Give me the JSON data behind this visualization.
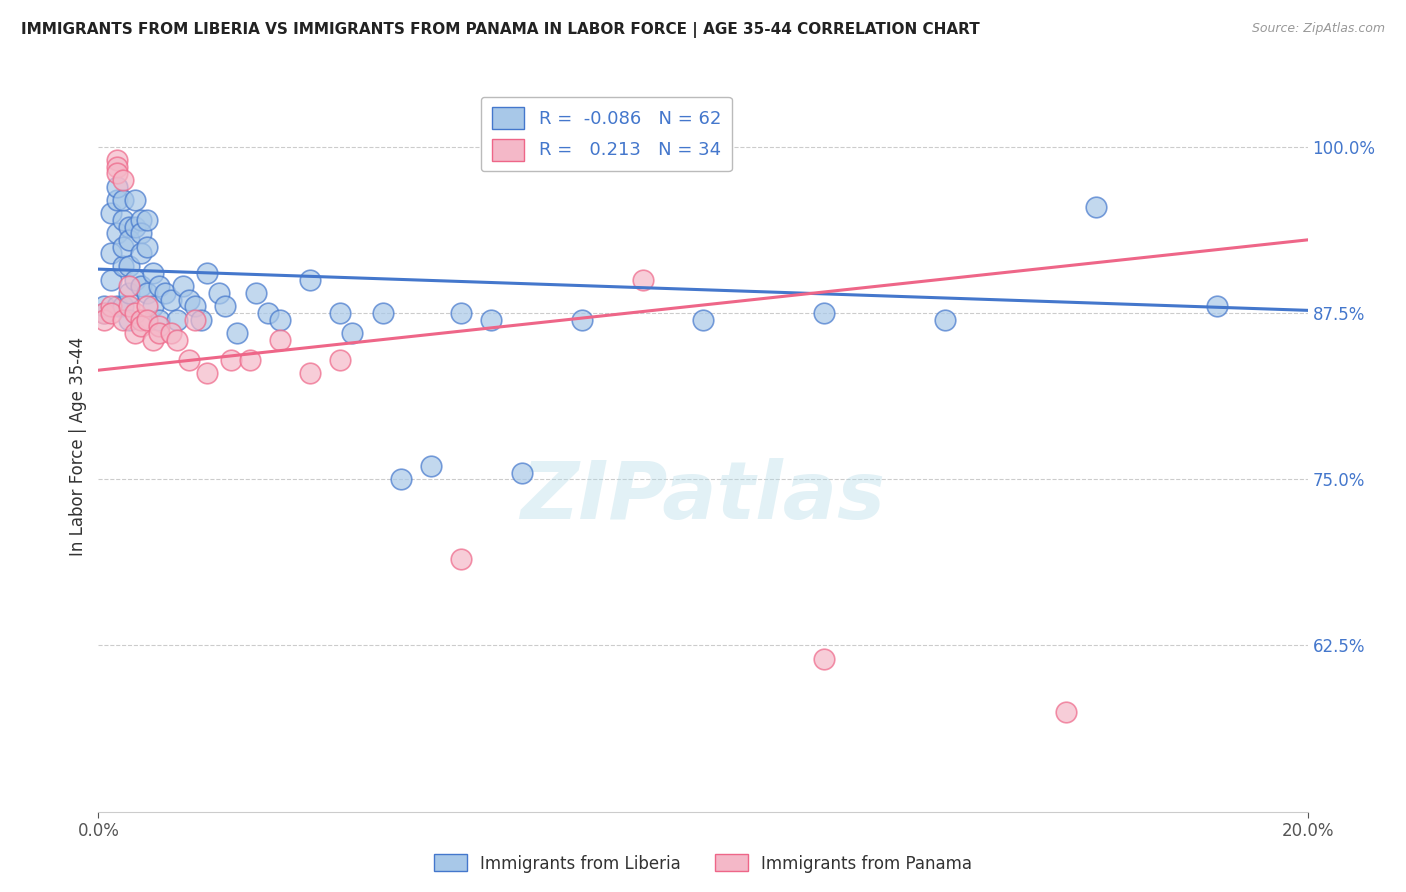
{
  "title": "IMMIGRANTS FROM LIBERIA VS IMMIGRANTS FROM PANAMA IN LABOR FORCE | AGE 35-44 CORRELATION CHART",
  "source": "Source: ZipAtlas.com",
  "ylabel": "In Labor Force | Age 35-44",
  "right_yticks": [
    0.625,
    0.75,
    0.875,
    1.0
  ],
  "right_yticklabels": [
    "62.5%",
    "75.0%",
    "87.5%",
    "100.0%"
  ],
  "xmin": 0.0,
  "xmax": 0.2,
  "ymin": 0.5,
  "ymax": 1.05,
  "blue_R": -0.086,
  "blue_N": 62,
  "pink_R": 0.213,
  "pink_N": 34,
  "blue_color": "#A8C8E8",
  "pink_color": "#F4B8C8",
  "blue_line_color": "#4477CC",
  "pink_line_color": "#EE6688",
  "legend_label_blue": "Immigrants from Liberia",
  "legend_label_pink": "Immigrants from Panama",
  "blue_x": [
    0.001,
    0.001,
    0.002,
    0.002,
    0.002,
    0.003,
    0.003,
    0.003,
    0.003,
    0.004,
    0.004,
    0.004,
    0.004,
    0.004,
    0.005,
    0.005,
    0.005,
    0.005,
    0.005,
    0.006,
    0.006,
    0.006,
    0.007,
    0.007,
    0.007,
    0.007,
    0.008,
    0.008,
    0.008,
    0.009,
    0.009,
    0.01,
    0.01,
    0.011,
    0.012,
    0.013,
    0.014,
    0.015,
    0.016,
    0.017,
    0.018,
    0.02,
    0.021,
    0.023,
    0.026,
    0.028,
    0.03,
    0.035,
    0.04,
    0.042,
    0.047,
    0.05,
    0.055,
    0.06,
    0.065,
    0.07,
    0.08,
    0.1,
    0.12,
    0.14,
    0.165,
    0.185
  ],
  "blue_y": [
    0.875,
    0.88,
    0.9,
    0.92,
    0.95,
    0.935,
    0.96,
    0.97,
    0.88,
    0.91,
    0.945,
    0.96,
    0.925,
    0.88,
    0.94,
    0.93,
    0.91,
    0.89,
    0.87,
    0.96,
    0.94,
    0.9,
    0.945,
    0.935,
    0.92,
    0.895,
    0.945,
    0.925,
    0.89,
    0.905,
    0.88,
    0.895,
    0.87,
    0.89,
    0.885,
    0.87,
    0.895,
    0.885,
    0.88,
    0.87,
    0.905,
    0.89,
    0.88,
    0.86,
    0.89,
    0.875,
    0.87,
    0.9,
    0.875,
    0.86,
    0.875,
    0.75,
    0.76,
    0.875,
    0.87,
    0.755,
    0.87,
    0.87,
    0.875,
    0.87,
    0.955,
    0.88
  ],
  "pink_x": [
    0.001,
    0.001,
    0.002,
    0.002,
    0.003,
    0.003,
    0.003,
    0.004,
    0.004,
    0.005,
    0.005,
    0.006,
    0.006,
    0.007,
    0.007,
    0.008,
    0.008,
    0.009,
    0.01,
    0.01,
    0.012,
    0.013,
    0.015,
    0.016,
    0.018,
    0.022,
    0.025,
    0.03,
    0.035,
    0.04,
    0.06,
    0.09,
    0.12,
    0.16
  ],
  "pink_y": [
    0.875,
    0.87,
    0.88,
    0.875,
    0.99,
    0.985,
    0.98,
    0.975,
    0.87,
    0.895,
    0.88,
    0.875,
    0.86,
    0.87,
    0.865,
    0.88,
    0.87,
    0.855,
    0.865,
    0.86,
    0.86,
    0.855,
    0.84,
    0.87,
    0.83,
    0.84,
    0.84,
    0.855,
    0.83,
    0.84,
    0.69,
    0.9,
    0.615,
    0.575
  ],
  "blue_trend_x": [
    0.0,
    0.2
  ],
  "blue_trend_y": [
    0.908,
    0.877
  ],
  "pink_trend_x": [
    0.0,
    0.2
  ],
  "pink_trend_y": [
    0.832,
    0.93
  ],
  "watermark_text": "ZIPatlas",
  "grid_color": "#CCCCCC",
  "bg_color": "#FFFFFF"
}
